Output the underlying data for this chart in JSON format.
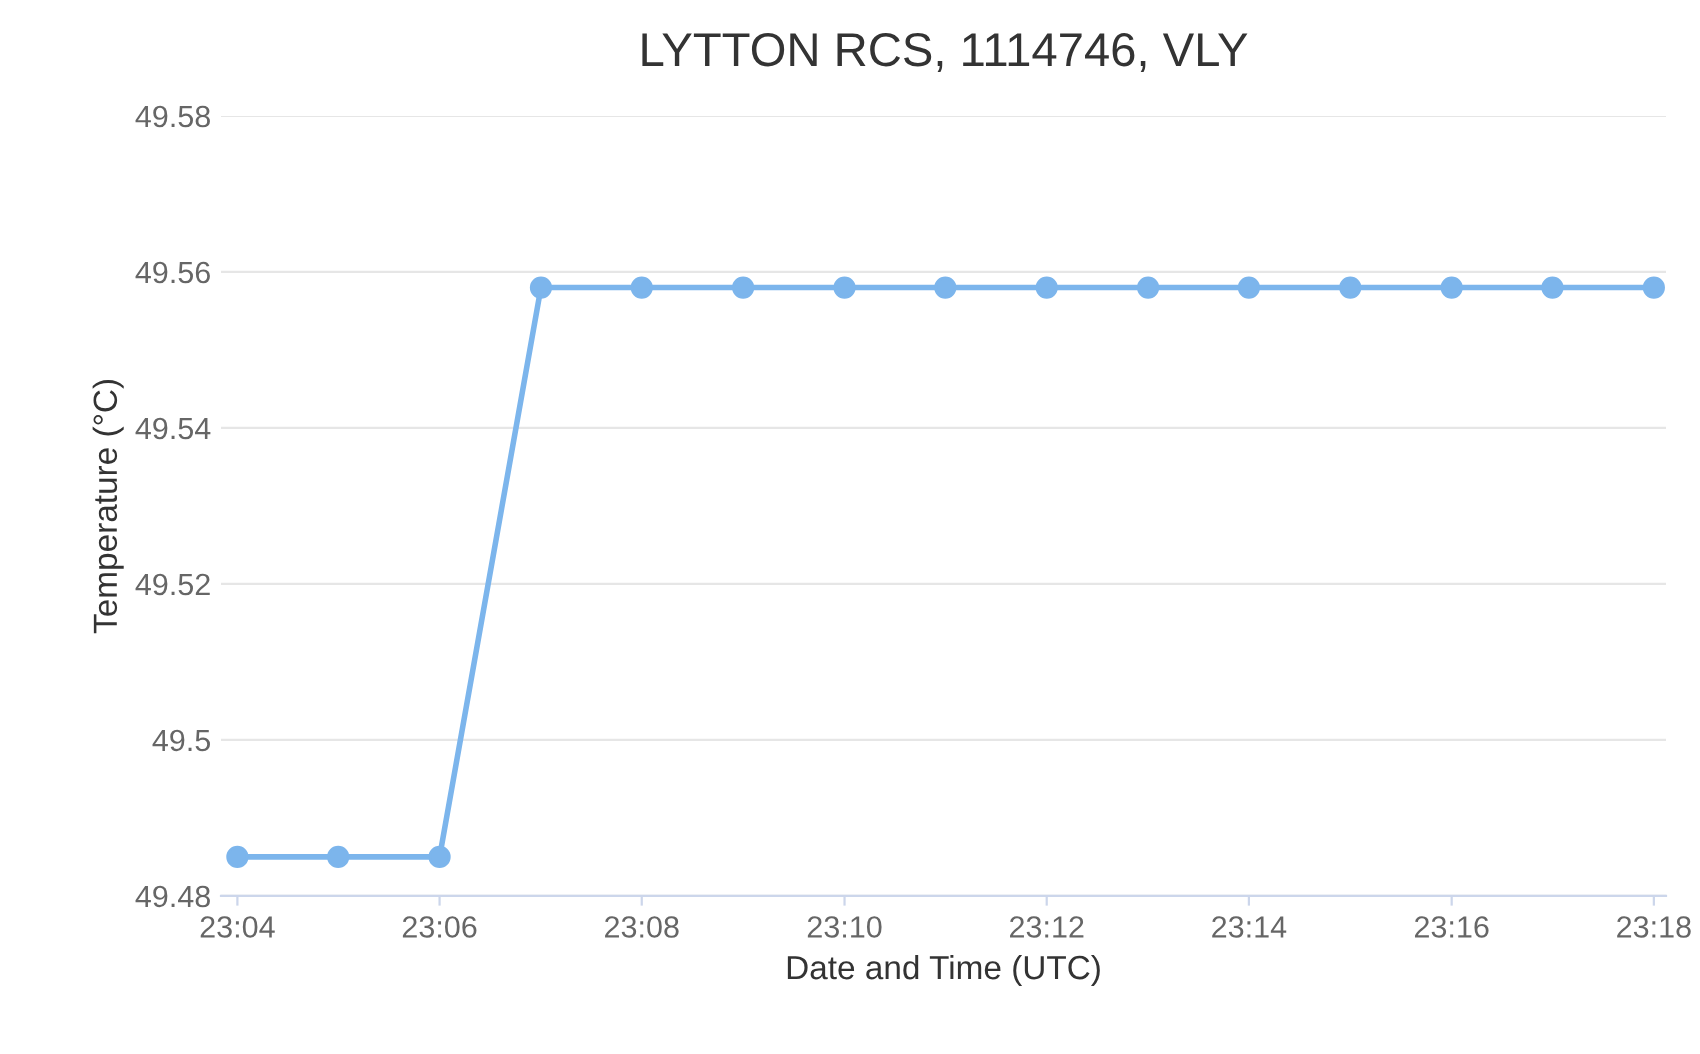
{
  "chart_data": {
    "type": "line",
    "title": "LYTTON RCS, 1114746, VLY",
    "xlabel": "Date and Time (UTC)",
    "ylabel": "Temperature (°C)",
    "x": [
      23.0667,
      23.0833,
      23.1,
      23.1167,
      23.1333,
      23.15,
      23.1667,
      23.1833,
      23.2,
      23.2167,
      23.2333,
      23.25,
      23.2667,
      23.2833,
      23.3
    ],
    "series": [
      {
        "color": "#7cb5ec",
        "values": [
          49.485,
          49.485,
          49.485,
          49.558,
          49.558,
          49.558,
          49.558,
          49.558,
          49.558,
          49.558,
          49.558,
          49.558,
          49.558,
          49.558,
          49.558
        ]
      }
    ],
    "xlim": [
      23.064,
      23.302
    ],
    "ylim": [
      49.48,
      49.58
    ],
    "xticks": [
      {
        "value": 23.0667,
        "label": "23:04"
      },
      {
        "value": 23.1,
        "label": "23:06"
      },
      {
        "value": 23.1333,
        "label": "23:08"
      },
      {
        "value": 23.1667,
        "label": "23:10"
      },
      {
        "value": 23.2,
        "label": "23:12"
      },
      {
        "value": 23.2333,
        "label": "23:14"
      },
      {
        "value": 23.2667,
        "label": "23:16"
      },
      {
        "value": 23.3,
        "label": "23:18"
      }
    ],
    "yticks": [
      49.48,
      49.5,
      49.52,
      49.54,
      49.56,
      49.58
    ],
    "grid": "y",
    "legend": false,
    "marker": "circle",
    "line_style": "solid"
  }
}
